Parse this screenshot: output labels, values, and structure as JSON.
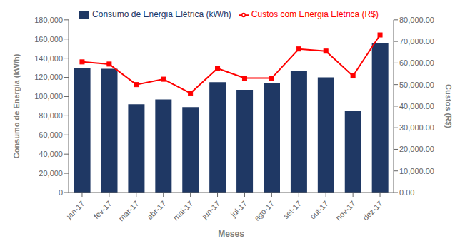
{
  "chart_data": {
    "type": "combo",
    "xlabel": "Meses",
    "ylabel": "Consumo de Energia (kW/h)",
    "y2label": "Custos (R$)",
    "categories": [
      "jan-17",
      "fev-17",
      "mar-17",
      "abr-17",
      "mai-17",
      "jun-17",
      "jul-17",
      "ago-17",
      "set-17",
      "out-17",
      "nov-17",
      "dez-17"
    ],
    "series": [
      {
        "name": "Consumo de Energia Elétrica (kW/h)",
        "type": "bar",
        "color": "#1f3864",
        "values": [
          130000,
          129000,
          92000,
          97000,
          89000,
          115000,
          107000,
          114000,
          127000,
          120000,
          85000,
          156000
        ]
      },
      {
        "name": "Custos com Energia Elétrica (R$)",
        "type": "line",
        "color": "#ff0000",
        "marker": "square",
        "axis": "y2",
        "values": [
          60500,
          59500,
          50000,
          52500,
          46000,
          57500,
          53000,
          53000,
          66500,
          65500,
          54000,
          73000
        ]
      }
    ],
    "ylim": [
      0,
      180000
    ],
    "yticks": [
      0,
      {
        "value": 20000,
        "label": "20,000"
      },
      {
        "value": 40000,
        "label": "40,000"
      },
      {
        "value": 60000,
        "label": "60,000"
      },
      {
        "value": 80000,
        "label": "80,000"
      },
      {
        "value": 100000,
        "label": "100,000"
      },
      {
        "value": 120000,
        "label": "120,000"
      },
      {
        "value": 140000,
        "label": "140,000"
      },
      {
        "value": 160000,
        "label": "160,000"
      },
      {
        "value": 180000,
        "label": "180,000"
      }
    ],
    "y2lim": [
      0,
      80000
    ],
    "y2ticks": [
      {
        "value": 0,
        "label": "0.00"
      },
      {
        "value": 10000,
        "label": "10,000.00"
      },
      {
        "value": 20000,
        "label": "20,000.00"
      },
      {
        "value": 30000,
        "label": "30,000.00"
      },
      {
        "value": 40000,
        "label": "40,000.00"
      },
      {
        "value": 50000,
        "label": "50,000.00"
      },
      {
        "value": 60000,
        "label": "60,000.00"
      },
      {
        "value": 70000,
        "label": "70,000.00"
      },
      {
        "value": 80000,
        "label": "80,000.00"
      }
    ],
    "legend": "top",
    "grid": false
  }
}
